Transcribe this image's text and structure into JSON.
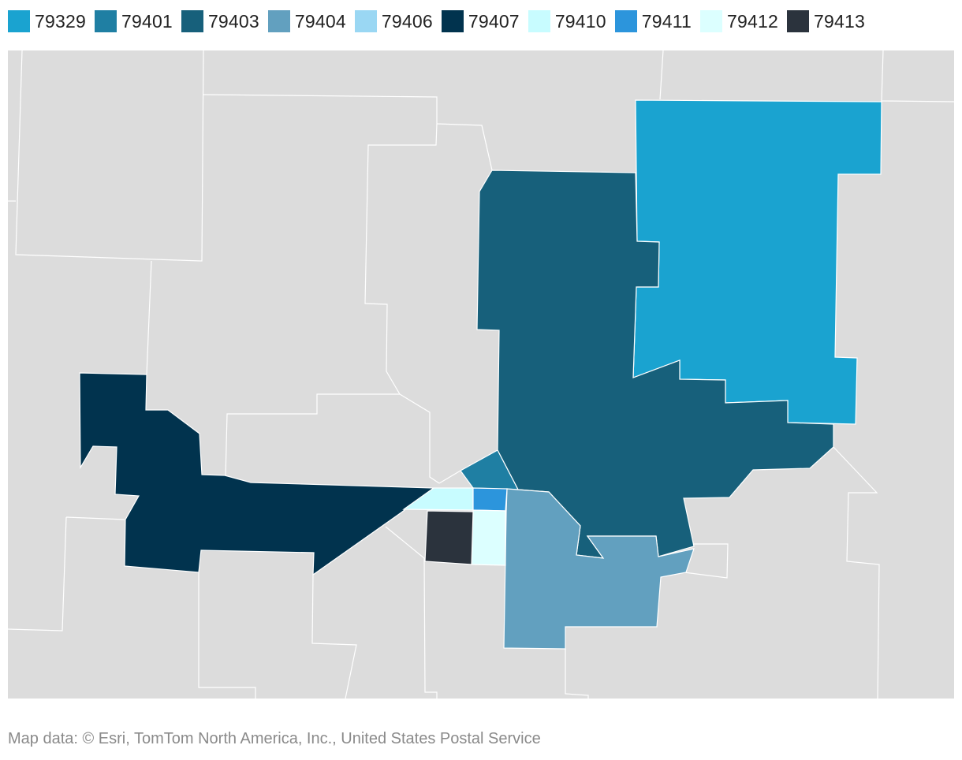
{
  "legend": [
    {
      "zip": "79329",
      "color": "#1aa3d0"
    },
    {
      "zip": "79401",
      "color": "#1f7fa3"
    },
    {
      "zip": "79403",
      "color": "#17607b"
    },
    {
      "zip": "79404",
      "color": "#62a0bf"
    },
    {
      "zip": "79406",
      "color": "#9ad7f3"
    },
    {
      "zip": "79407",
      "color": "#01334e"
    },
    {
      "zip": "79410",
      "color": "#c8fcff"
    },
    {
      "zip": "79411",
      "color": "#2c95dc"
    },
    {
      "zip": "79412",
      "color": "#dcffff"
    },
    {
      "zip": "79413",
      "color": "#2b333d"
    }
  ],
  "map": {
    "background_color": "#dcdcdc",
    "boundary_color": "#ffffff"
  },
  "credit": "Map data: © Esri, TomTom North America, Inc., United States Postal Service"
}
